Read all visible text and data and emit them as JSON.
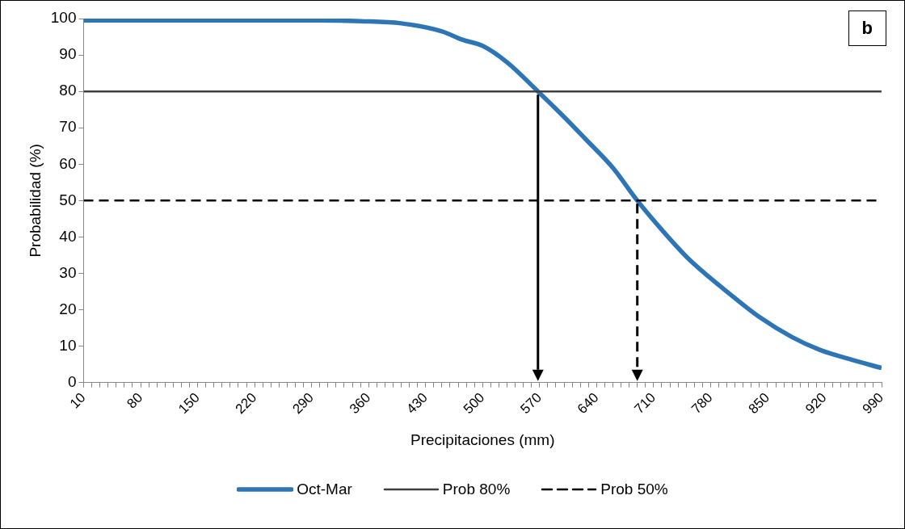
{
  "chart_data": {
    "type": "line",
    "xlabel": "Precipitaciones (mm)",
    "ylabel": "Probabilidad (%)",
    "annotations": [
      "b"
    ],
    "xlim": [
      10,
      990
    ],
    "ylim": [
      0,
      100
    ],
    "xticks": [
      10,
      {
        "value": 20,
        "label": null
      },
      {
        "value": 30,
        "label": null
      },
      {
        "value": 40,
        "label": null
      },
      {
        "value": 50,
        "label": null
      },
      {
        "value": 60,
        "label": null
      },
      {
        "value": 70,
        "label": null
      },
      80,
      {
        "value": 90,
        "label": null
      },
      {
        "value": 100,
        "label": null
      },
      {
        "value": 110,
        "label": null
      },
      {
        "value": 120,
        "label": null
      },
      {
        "value": 130,
        "label": null
      },
      {
        "value": 140,
        "label": null
      },
      150,
      {
        "value": 160,
        "label": null
      },
      {
        "value": 170,
        "label": null
      },
      {
        "value": 180,
        "label": null
      },
      {
        "value": 190,
        "label": null
      },
      {
        "value": 200,
        "label": null
      },
      {
        "value": 210,
        "label": null
      },
      220,
      {
        "value": 230,
        "label": null
      },
      {
        "value": 240,
        "label": null
      },
      {
        "value": 250,
        "label": null
      },
      {
        "value": 260,
        "label": null
      },
      {
        "value": 270,
        "label": null
      },
      {
        "value": 280,
        "label": null
      },
      290,
      {
        "value": 300,
        "label": null
      },
      {
        "value": 310,
        "label": null
      },
      {
        "value": 320,
        "label": null
      },
      {
        "value": 330,
        "label": null
      },
      {
        "value": 340,
        "label": null
      },
      {
        "value": 350,
        "label": null
      },
      360,
      {
        "value": 370,
        "label": null
      },
      {
        "value": 380,
        "label": null
      },
      {
        "value": 390,
        "label": null
      },
      {
        "value": 400,
        "label": null
      },
      {
        "value": 410,
        "label": null
      },
      {
        "value": 420,
        "label": null
      },
      430,
      {
        "value": 440,
        "label": null
      },
      {
        "value": 450,
        "label": null
      },
      {
        "value": 460,
        "label": null
      },
      {
        "value": 470,
        "label": null
      },
      {
        "value": 480,
        "label": null
      },
      {
        "value": 490,
        "label": null
      },
      500,
      {
        "value": 510,
        "label": null
      },
      {
        "value": 520,
        "label": null
      },
      {
        "value": 530,
        "label": null
      },
      {
        "value": 540,
        "label": null
      },
      {
        "value": 550,
        "label": null
      },
      {
        "value": 560,
        "label": null
      },
      570,
      {
        "value": 580,
        "label": null
      },
      {
        "value": 590,
        "label": null
      },
      {
        "value": 600,
        "label": null
      },
      {
        "value": 610,
        "label": null
      },
      {
        "value": 620,
        "label": null
      },
      {
        "value": 630,
        "label": null
      },
      640,
      {
        "value": 650,
        "label": null
      },
      {
        "value": 660,
        "label": null
      },
      {
        "value": 670,
        "label": null
      },
      {
        "value": 680,
        "label": null
      },
      {
        "value": 690,
        "label": null
      },
      {
        "value": 700,
        "label": null
      },
      710,
      {
        "value": 720,
        "label": null
      },
      {
        "value": 730,
        "label": null
      },
      {
        "value": 740,
        "label": null
      },
      {
        "value": 750,
        "label": null
      },
      {
        "value": 760,
        "label": null
      },
      {
        "value": 770,
        "label": null
      },
      780,
      {
        "value": 790,
        "label": null
      },
      {
        "value": 800,
        "label": null
      },
      {
        "value": 810,
        "label": null
      },
      {
        "value": 820,
        "label": null
      },
      {
        "value": 830,
        "label": null
      },
      {
        "value": 840,
        "label": null
      },
      850,
      {
        "value": 860,
        "label": null
      },
      {
        "value": 870,
        "label": null
      },
      {
        "value": 880,
        "label": null
      },
      {
        "value": 890,
        "label": null
      },
      {
        "value": 900,
        "label": null
      },
      {
        "value": 910,
        "label": null
      },
      920,
      {
        "value": 930,
        "label": null
      },
      {
        "value": 940,
        "label": null
      },
      {
        "value": 950,
        "label": null
      },
      {
        "value": 960,
        "label": null
      },
      {
        "value": 970,
        "label": null
      },
      {
        "value": 980,
        "label": null
      },
      990
    ],
    "yticks": [
      0,
      10,
      20,
      30,
      40,
      50,
      60,
      70,
      80,
      90,
      100
    ],
    "legend": "bottom",
    "marker": "none",
    "series": [
      {
        "name": "Oct-Mar",
        "color": "#2e75b6",
        "line_style": "solid",
        "x": [
          10,
          100,
          200,
          300,
          350,
          400,
          450,
          475,
          500,
          530,
          568,
          600,
          626,
          660,
          690,
          720,
          753,
          800,
          840,
          880,
          914,
          950,
          990
        ],
        "values": [
          99.5,
          99.5,
          99.5,
          99.5,
          99.3,
          98.7,
          96.5,
          94.2,
          92.5,
          88,
          80,
          73,
          67,
          59,
          50,
          42,
          34,
          25,
          18,
          12.5,
          9,
          6.5,
          4
        ]
      },
      {
        "name": "Prob 80%",
        "color": "#404040",
        "line_style": "solid",
        "x": [
          10,
          990
        ],
        "values": [
          80,
          80
        ]
      },
      {
        "name": "Prob 50%",
        "color": "#000000",
        "line_style": "dashed",
        "x": [
          10,
          990
        ],
        "values": [
          50,
          50
        ]
      }
    ]
  }
}
